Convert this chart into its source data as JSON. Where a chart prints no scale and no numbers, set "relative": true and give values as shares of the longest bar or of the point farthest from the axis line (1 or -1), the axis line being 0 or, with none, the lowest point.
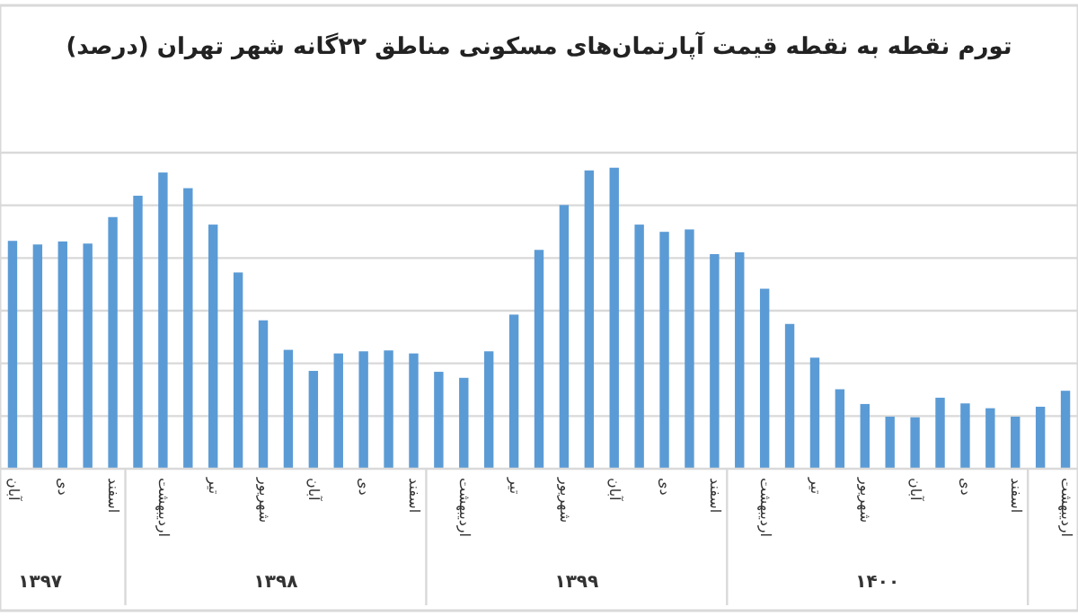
{
  "chart_data": {
    "type": "bar",
    "title": "تورم نقطه به نقطه قیمت آپارتمان‌های مسکونی مناطق ۲۲گانه شهر تهران (درصد)",
    "categories": [
      "آبان",
      null,
      "دی",
      null,
      "اسفند",
      null,
      "اردیبهشت",
      null,
      "تیر",
      null,
      "شهریور",
      null,
      "آبان",
      null,
      "دی",
      null,
      "اسفند",
      null,
      "اردیبهشت",
      null,
      "تیر",
      null,
      "شهریور",
      null,
      "آبان",
      null,
      "دی",
      null,
      "اسفند",
      null,
      "اردیبهشت",
      null,
      "تیر",
      null,
      "شهریور",
      null,
      "آبان",
      null,
      "دی",
      null,
      "اسفند",
      null,
      "اردیبهشت"
    ],
    "values": [
      0.757,
      0.745,
      0.755,
      0.748,
      0.836,
      0.907,
      0.984,
      0.932,
      0.811,
      0.652,
      0.493,
      0.395,
      0.325,
      0.383,
      0.39,
      0.393,
      0.383,
      0.322,
      0.302,
      0.39,
      0.512,
      0.727,
      0.876,
      0.991,
      1,
      0.811,
      0.787,
      0.795,
      0.713,
      0.719,
      0.598,
      0.481,
      0.369,
      0.264,
      0.215,
      0.173,
      0.171,
      0.236,
      0.217,
      0.201,
      0.173,
      0.206,
      0.259
    ],
    "color": "#5b9bd5",
    "relative": true,
    "grid": "y",
    "annotations": [
      "۱۳۹۷",
      "۱۳۹۸",
      "۱۳۹۹",
      "۱۴۰۰"
    ]
  }
}
